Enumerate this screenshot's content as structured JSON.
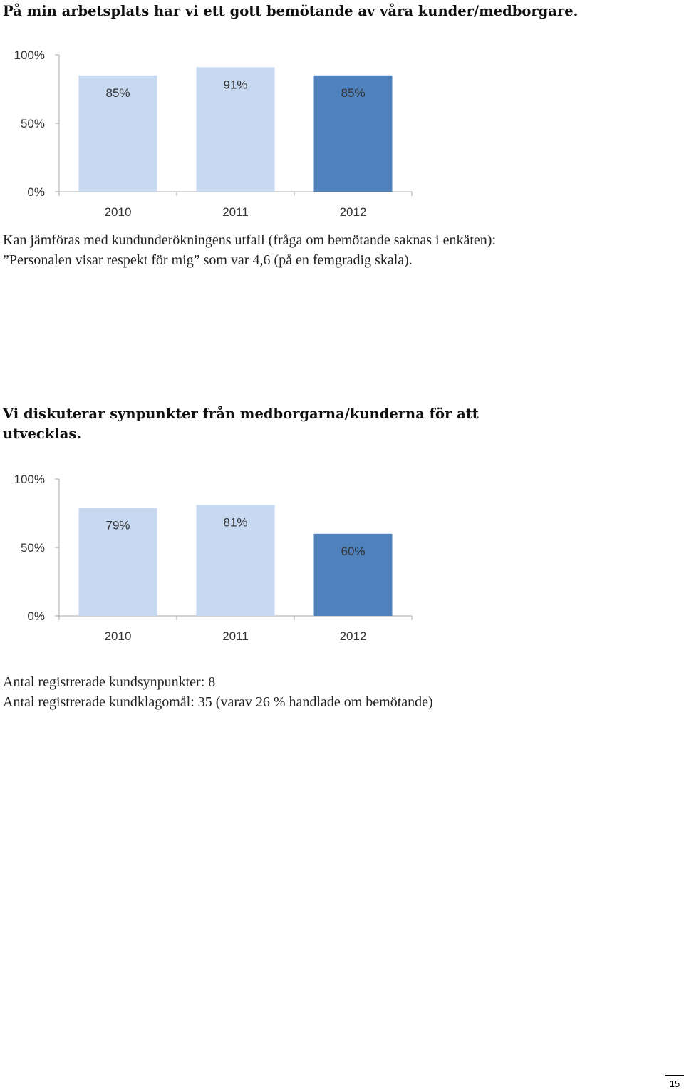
{
  "section1": {
    "heading": "På min arbetsplats har vi ett gott bemötande av våra kunder/medborgare.",
    "note_lines": [
      "Kan jämföras med kundunderökningens utfall (fråga om bemötande saknas i enkäten):",
      "”Personalen visar respekt för mig” som var 4,6 (på en femgradig skala)."
    ]
  },
  "section2": {
    "heading": "Vi diskuterar synpunkter från medborgarna/kunderna för att utvecklas.",
    "note_lines": [
      "Antal registrerade kundsynpunkter: 8",
      "Antal registrerade kundklagomål: 35 (varav 26 % handlade om bemötande)"
    ]
  },
  "chart_data": [
    {
      "type": "bar",
      "categories": [
        "2010",
        "2011",
        "2012"
      ],
      "values": [
        85,
        91,
        85
      ],
      "value_labels": [
        "85%",
        "91%",
        "85%"
      ],
      "ylim": [
        0,
        100
      ],
      "yticks": [
        "0%",
        "50%",
        "100%"
      ],
      "colors": [
        "#c6d9f1",
        "#c6d9f1",
        "#4f81bd"
      ]
    },
    {
      "type": "bar",
      "categories": [
        "2010",
        "2011",
        "2012"
      ],
      "values": [
        79,
        81,
        60
      ],
      "value_labels": [
        "79%",
        "81%",
        "60%"
      ],
      "ylim": [
        0,
        100
      ],
      "yticks": [
        "0%",
        "50%",
        "100%"
      ],
      "colors": [
        "#c6d9f1",
        "#c6d9f1",
        "#4f81bd"
      ]
    }
  ],
  "page_number": "15"
}
